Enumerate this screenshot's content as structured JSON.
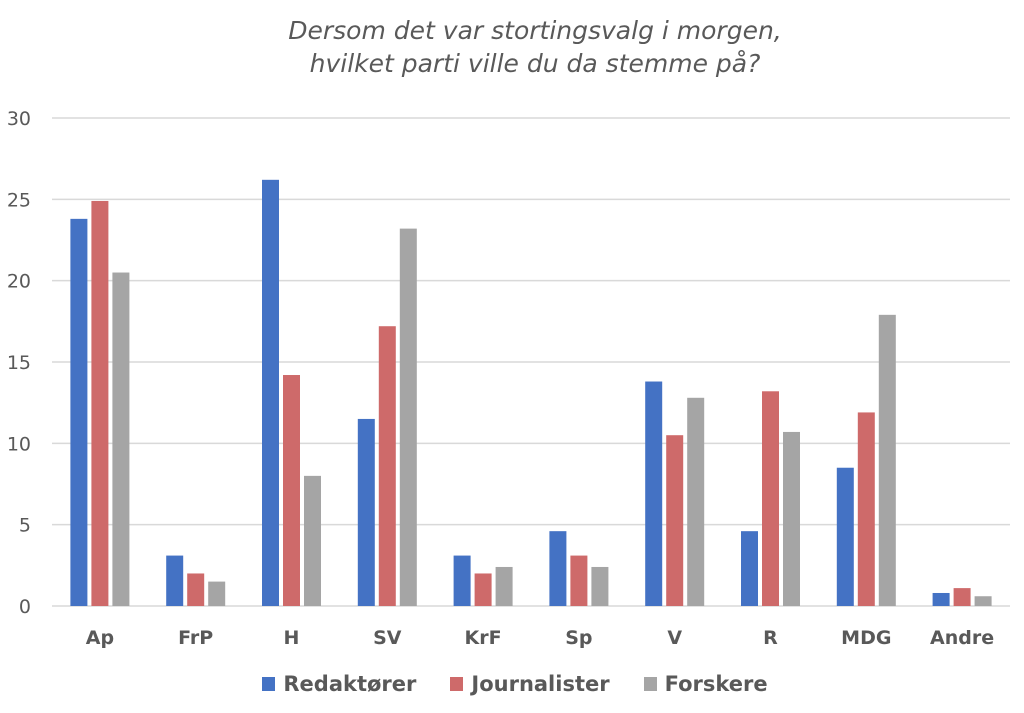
{
  "chart_data": {
    "type": "bar",
    "title": [
      "Dersom det var stortingsvalg i morgen,",
      "hvilket parti ville du da stemme på?"
    ],
    "xlabel": "",
    "ylabel": "",
    "ylim": [
      0,
      30
    ],
    "yticks": [
      "0",
      "5",
      "10",
      "15",
      "20",
      "25",
      "30"
    ],
    "grid": true,
    "legend_position": "bottom",
    "categories": [
      "Ap",
      "FrP",
      "H",
      "SV",
      "KrF",
      "Sp",
      "V",
      "R",
      "MDG",
      "Andre"
    ],
    "series": [
      {
        "name": "Redaktører",
        "color": "#4472C4",
        "values": [
          23.8,
          3.1,
          26.2,
          11.5,
          3.1,
          4.6,
          13.8,
          4.6,
          8.5,
          0.8
        ]
      },
      {
        "name": "Journalister",
        "color": "#CE6A6A",
        "values": [
          24.9,
          2.0,
          14.2,
          17.2,
          2.0,
          3.1,
          10.5,
          13.2,
          11.9,
          1.1
        ]
      },
      {
        "name": "Forskere",
        "color": "#A5A5A5",
        "values": [
          20.5,
          1.5,
          8.0,
          23.2,
          2.4,
          2.4,
          12.8,
          10.7,
          17.9,
          0.6
        ]
      }
    ]
  }
}
